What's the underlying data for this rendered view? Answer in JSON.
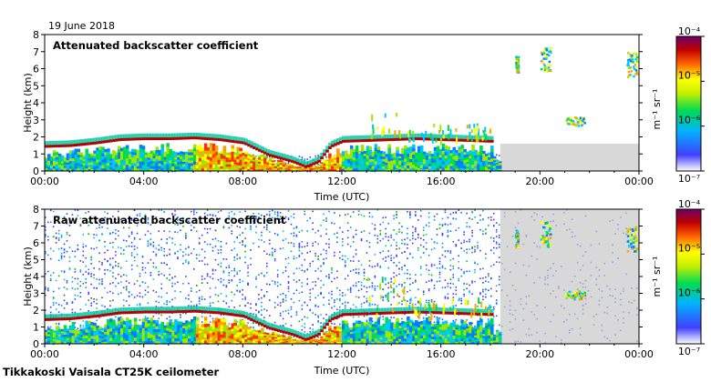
{
  "date_label": "19 June 2018",
  "footer": "Tikkakoski Vaisala CT25K ceilometer",
  "colors": {
    "cloud_base": "#b40000",
    "no_signal": "#d8d8d8"
  },
  "chart_data": [
    {
      "type": "heatmap",
      "title": "Attenuated backscatter coefficient",
      "xlabel": "Time (UTC)",
      "ylabel": "Height (km)",
      "x_ticks": [
        "00:00",
        "04:00",
        "08:00",
        "12:00",
        "16:00",
        "20:00",
        "00:00"
      ],
      "y_ticks": [
        "0",
        "1",
        "2",
        "3",
        "4",
        "5",
        "6",
        "7",
        "8"
      ],
      "xlim_hours": [
        0,
        24
      ],
      "ylim_km": [
        0,
        8
      ],
      "colorbar": {
        "scale": "log",
        "label": "m⁻¹ sr⁻¹",
        "ticks": [
          "10⁻⁷",
          "10⁻⁶",
          "10⁻⁵",
          "10⁻⁴"
        ],
        "colors": [
          "#ffffff",
          "#3030e0",
          "#00c8ff",
          "#00dc00",
          "#ffff00",
          "#ff6400",
          "#a00000",
          "#700070"
        ]
      },
      "grey_no_data_from_hour": 18.4
    },
    {
      "type": "heatmap",
      "title": "Raw attenuated backscatter coefficient",
      "xlabel": "Time (UTC)",
      "ylabel": "Height (km)",
      "x_ticks": [
        "00:00",
        "04:00",
        "08:00",
        "12:00",
        "16:00",
        "20:00",
        "00:00"
      ],
      "y_ticks": [
        "0",
        "1",
        "2",
        "3",
        "4",
        "5",
        "6",
        "7",
        "8"
      ],
      "xlim_hours": [
        0,
        24
      ],
      "ylim_km": [
        0,
        8
      ],
      "colorbar": {
        "scale": "log",
        "label": "m⁻¹ sr⁻¹",
        "ticks": [
          "10⁻⁷",
          "10⁻⁶",
          "10⁻⁵",
          "10⁻⁴"
        ],
        "colors": [
          "#ffffff",
          "#3030e0",
          "#00c8ff",
          "#00dc00",
          "#ffff00",
          "#ff6400",
          "#a00000",
          "#700070"
        ]
      },
      "grey_no_data_from_hour": 18.4
    }
  ],
  "cloud_base_km": {
    "hours": [
      0,
      1,
      2,
      3,
      4,
      5,
      6,
      7,
      8,
      9,
      10,
      10.5,
      11,
      11.5,
      12,
      13,
      14,
      15,
      16,
      17,
      18
    ],
    "height": [
      1.4,
      1.45,
      1.6,
      1.8,
      1.85,
      1.85,
      1.9,
      1.8,
      1.6,
      0.9,
      0.5,
      0.2,
      0.5,
      1.4,
      1.7,
      1.75,
      1.8,
      1.85,
      1.8,
      1.75,
      1.7
    ]
  },
  "cloud_patches": [
    {
      "t0": 20.0,
      "t1": 20.4,
      "h0": 5.8,
      "h1": 7.3
    },
    {
      "t0": 23.5,
      "t1": 23.9,
      "h0": 5.5,
      "h1": 7.0
    },
    {
      "t0": 21.0,
      "t1": 21.8,
      "h0": 2.7,
      "h1": 3.2
    },
    {
      "t0": 19.0,
      "t1": 19.1,
      "h0": 5.8,
      "h1": 6.8
    }
  ]
}
